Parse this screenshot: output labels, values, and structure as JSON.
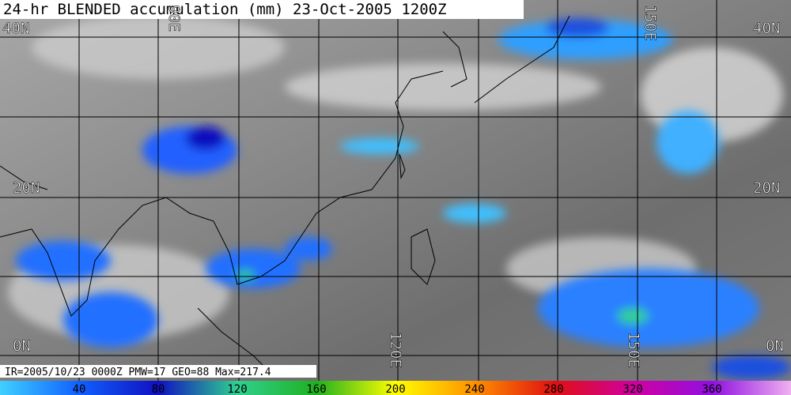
{
  "title": "24-hr BLENDED accumulation (mm) 23-Oct-2005 1200Z",
  "latitude_labels": [
    "40N",
    "20N",
    "0N"
  ],
  "longitude_labels": [
    "90E",
    "120E",
    "150E"
  ],
  "info": "IR=2005/10/23 0000Z PMW=17 GEO=88 Max=217.4",
  "colorbar": {
    "ticks": [
      40,
      80,
      120,
      160,
      200,
      240,
      280,
      320,
      360
    ]
  }
}
